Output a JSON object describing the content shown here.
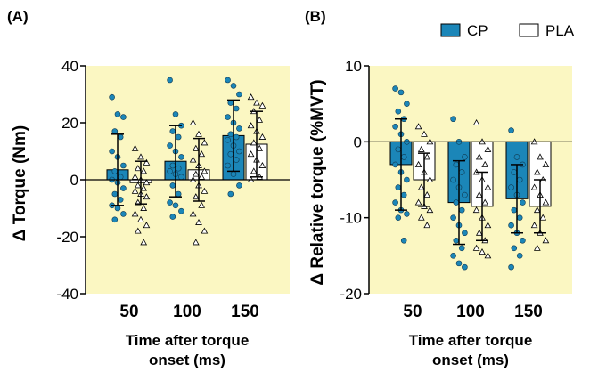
{
  "colors": {
    "cp": "#1b86b8",
    "pla": "#ffffff",
    "plot_bg": "#fbf7c2",
    "cp_point": "#1b86b8"
  },
  "legend": {
    "cp": "CP",
    "pla": "PLA"
  },
  "chart_data": [
    {
      "panel": "(A)",
      "type": "bar",
      "categories": [
        "50",
        "100",
        "150"
      ],
      "ylabel": "Δ Torque (Nm)",
      "xlabel_line1": "Time after torque",
      "xlabel_line2": "onset (ms)",
      "ylim": [
        -40,
        40
      ],
      "yticks": [
        -40,
        -20,
        0,
        20,
        40
      ],
      "grid": false,
      "series": [
        {
          "name": "CP",
          "values": [
            3.5,
            6.5,
            15.5
          ],
          "sd": [
            12.5,
            12.5,
            12.5
          ],
          "points": [
            [
              29,
              23,
              22,
              17,
              15,
              10,
              8,
              5,
              3,
              1,
              0,
              -1,
              -3,
              -5,
              -7,
              -9,
              -10,
              -12,
              -14
            ],
            [
              35,
              23,
              19,
              17,
              15,
              12,
              10,
              8,
              5,
              4,
              3,
              2,
              1,
              -2,
              -5,
              -8,
              -9,
              -11,
              -13
            ],
            [
              35,
              33,
              30,
              27,
              25,
              22,
              20,
              18,
              16,
              15,
              14,
              12,
              10,
              9,
              7,
              5,
              2,
              -2,
              -5
            ]
          ]
        },
        {
          "name": "PLA",
          "values": [
            -1.0,
            3.5,
            12.5
          ],
          "sd": [
            7.5,
            11.0,
            11.5
          ],
          "points": [
            [
              11,
              8,
              6,
              4,
              3,
              1,
              0,
              -1,
              -2,
              -3,
              -4,
              -5,
              -6,
              -8,
              -10,
              -12,
              -14,
              -16,
              -18,
              -22
            ],
            [
              20,
              16,
              13,
              11,
              9,
              7,
              5,
              3,
              2,
              1,
              0,
              -2,
              -4,
              -6,
              -9,
              -12,
              -15,
              -18,
              -22
            ],
            [
              29,
              27,
              26,
              24,
              21,
              19,
              17,
              15,
              13,
              11,
              9,
              7,
              5,
              3,
              1,
              0
            ]
          ]
        }
      ]
    },
    {
      "panel": "(B)",
      "type": "bar",
      "categories": [
        "50",
        "100",
        "150"
      ],
      "ylabel": "Δ Relative torque (%MVT)",
      "xlabel_line1": "Time after torque",
      "xlabel_line2": "onset (ms)",
      "ylim": [
        -20,
        10
      ],
      "yticks": [
        -20,
        -10,
        0,
        10
      ],
      "grid": false,
      "series": [
        {
          "name": "CP",
          "values": [
            -3.0,
            -8.0,
            -7.5
          ],
          "sd": [
            6.0,
            5.5,
            4.5
          ],
          "points": [
            [
              7,
              6.5,
              5,
              4,
              3,
              2,
              1,
              0,
              -1,
              -2,
              -3,
              -4,
              -5,
              -6,
              -7,
              -8,
              -9,
              -9.5,
              -10,
              -13
            ],
            [
              3,
              0,
              -2,
              -3,
              -4,
              -5,
              -6,
              -7,
              -8,
              -9,
              -10,
              -11,
              -12,
              -13,
              -14,
              -15,
              -16,
              -16.5
            ],
            [
              1.5,
              -2,
              -3,
              -4,
              -5,
              -6,
              -7,
              -8,
              -9,
              -10,
              -11,
              -12,
              -13,
              -14,
              -15,
              -16.5
            ]
          ]
        },
        {
          "name": "PLA",
          "values": [
            -5.0,
            -8.5,
            -8.5
          ],
          "sd": [
            3.5,
            4.5,
            3.5
          ],
          "points": [
            [
              2,
              1,
              0,
              -1,
              -2,
              -3,
              -4,
              -5,
              -6,
              -7,
              -8,
              -8.5,
              -9,
              -10,
              -11
            ],
            [
              2.5,
              0,
              -1,
              -2,
              -3,
              -4,
              -5,
              -6,
              -7,
              -8,
              -9,
              -10,
              -11,
              -12,
              -13,
              -14,
              -14.5,
              -15
            ],
            [
              0,
              -2,
              -3,
              -4,
              -5,
              -6,
              -7,
              -8,
              -9,
              -10,
              -11,
              -12,
              -13,
              -14
            ]
          ]
        }
      ]
    }
  ]
}
